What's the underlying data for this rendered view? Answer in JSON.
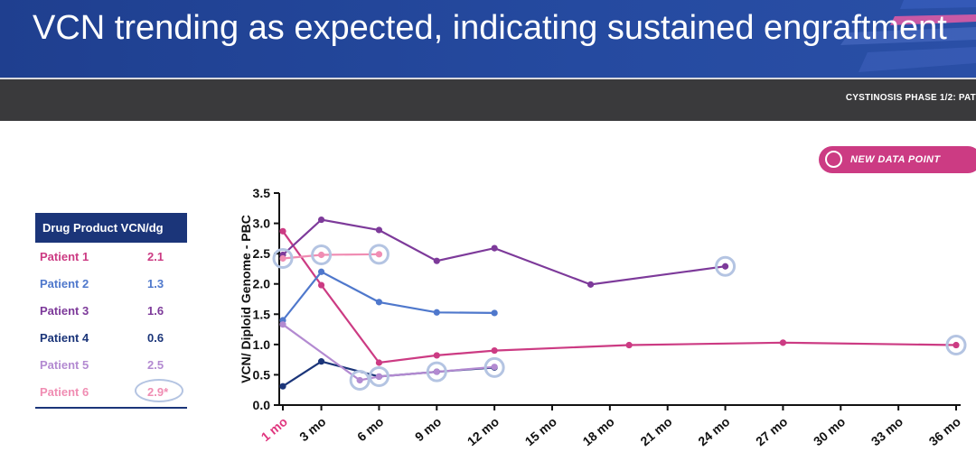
{
  "header": {
    "title": "VCN trending as expected, indicating sustained engraftment",
    "study_label": "CYSTINOSIS PHASE 1/2: PAT"
  },
  "badge": {
    "label": "NEW DATA POINT",
    "color": "#cc3b83"
  },
  "table": {
    "header": "Drug Product VCN/dg",
    "rows": [
      {
        "patient": "Patient 1",
        "value": "2.1",
        "color": "#cc3b83"
      },
      {
        "patient": "Patient 2",
        "value": "1.3",
        "color": "#4f78cc"
      },
      {
        "patient": "Patient 3",
        "value": "1.6",
        "color": "#7d3a9a"
      },
      {
        "patient": "Patient 4",
        "value": "0.6",
        "color": "#1b3579"
      },
      {
        "patient": "Patient 5",
        "value": "2.5",
        "color": "#b38ad1"
      },
      {
        "patient": "Patient 6",
        "value": "2.9*",
        "color": "#f08db3",
        "circled": true
      }
    ]
  },
  "chart_data": {
    "type": "line",
    "title": "",
    "ylabel": "VCN/ Diploid Genome - PBC",
    "xlabel": "",
    "ylim": [
      0,
      3.5
    ],
    "yticks": [
      "0.0",
      "0.5",
      "1.0",
      "1.5",
      "2.0",
      "2.5",
      "3.0",
      "3.5"
    ],
    "xlim": [
      1,
      36
    ],
    "xticks": [
      {
        "x": 1,
        "label": "1 mo",
        "highlight": true
      },
      {
        "x": 3,
        "label": "3 mo"
      },
      {
        "x": 6,
        "label": "6 mo"
      },
      {
        "x": 9,
        "label": "9 mo"
      },
      {
        "x": 12,
        "label": "12 mo"
      },
      {
        "x": 15,
        "label": "15 mo"
      },
      {
        "x": 18,
        "label": "18 mo"
      },
      {
        "x": 21,
        "label": "21 mo"
      },
      {
        "x": 24,
        "label": "24 mo"
      },
      {
        "x": 27,
        "label": "27 mo"
      },
      {
        "x": 30,
        "label": "30 mo"
      },
      {
        "x": 33,
        "label": "33 mo"
      },
      {
        "x": 36,
        "label": "36 mo"
      }
    ],
    "highlight_color": "#e0377f",
    "series": [
      {
        "name": "Patient 1",
        "color": "#cc3b83",
        "points": [
          [
            1,
            2.87
          ],
          [
            3,
            1.98
          ],
          [
            6,
            0.7
          ],
          [
            9,
            0.82
          ],
          [
            12,
            0.9
          ],
          [
            19,
            0.99
          ],
          [
            27,
            1.03
          ],
          [
            36,
            0.99
          ]
        ],
        "new_points": [
          [
            36,
            0.99
          ]
        ]
      },
      {
        "name": "Patient 2",
        "color": "#4f78cc",
        "points": [
          [
            1,
            1.4
          ],
          [
            3,
            2.2
          ],
          [
            6,
            1.7
          ],
          [
            9,
            1.53
          ],
          [
            12,
            1.52
          ]
        ],
        "new_points": []
      },
      {
        "name": "Patient 3",
        "color": "#7d3a9a",
        "points": [
          [
            1,
            2.48
          ],
          [
            3,
            3.06
          ],
          [
            6,
            2.89
          ],
          [
            9,
            2.38
          ],
          [
            12,
            2.59
          ],
          [
            17,
            1.99
          ],
          [
            24,
            2.29
          ]
        ],
        "new_points": [
          [
            24,
            2.29
          ]
        ]
      },
      {
        "name": "Patient 4",
        "color": "#1b3579",
        "points": [
          [
            1,
            0.31
          ],
          [
            3,
            0.72
          ],
          [
            6,
            0.47
          ],
          [
            9,
            0.55
          ],
          [
            12,
            0.62
          ]
        ],
        "new_points": [
          [
            12,
            0.62
          ]
        ]
      },
      {
        "name": "Patient 5",
        "color": "#b38ad1",
        "points": [
          [
            1,
            1.33
          ],
          [
            5,
            0.41
          ],
          [
            6,
            0.47
          ],
          [
            9,
            0.55
          ],
          [
            12,
            0.63
          ]
        ],
        "new_points": [
          [
            5,
            0.41
          ],
          [
            6,
            0.47
          ],
          [
            9,
            0.55
          ]
        ]
      },
      {
        "name": "Patient 6",
        "color": "#f08db3",
        "points": [
          [
            1,
            2.42
          ],
          [
            3,
            2.48
          ],
          [
            6,
            2.49
          ]
        ],
        "new_points": [
          [
            1,
            2.42
          ],
          [
            3,
            2.48
          ],
          [
            6,
            2.49
          ]
        ]
      }
    ]
  }
}
